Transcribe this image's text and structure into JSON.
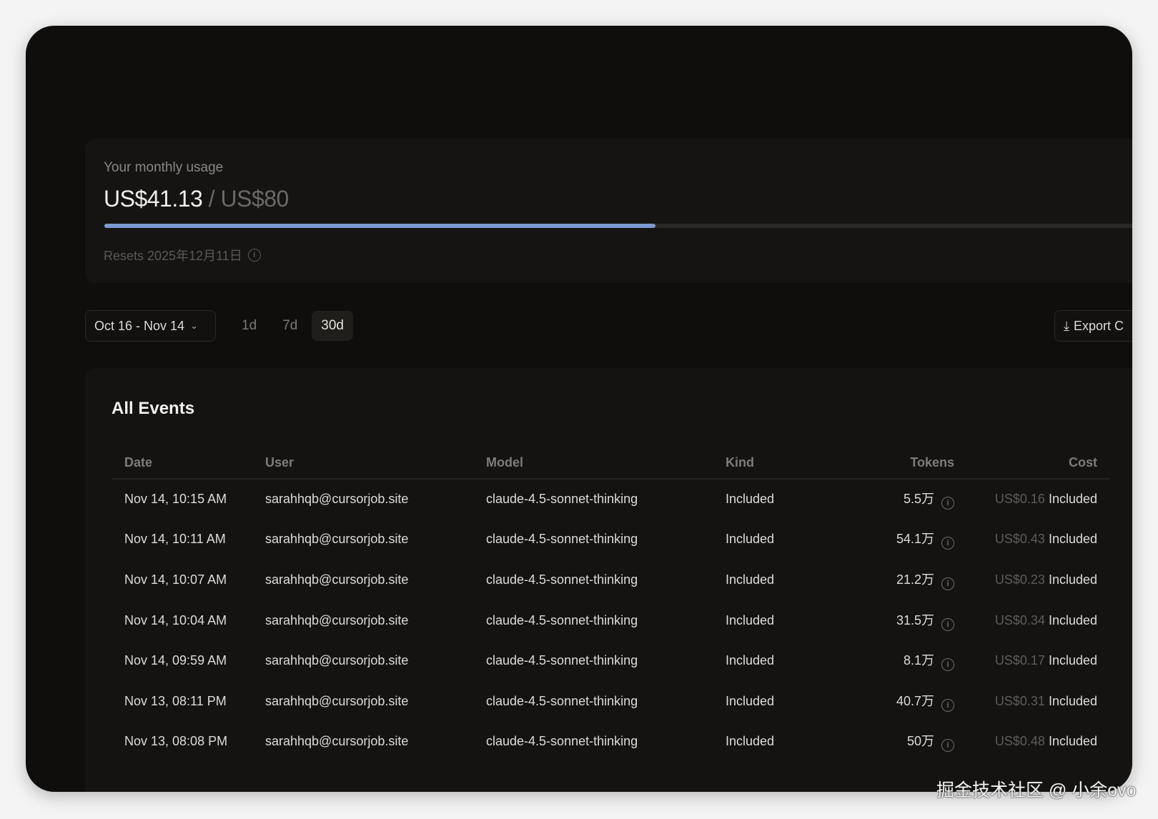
{
  "usage": {
    "label": "Your monthly usage",
    "used": "US$41.13",
    "limit": "/ US$80",
    "progress_percent": 51.4,
    "resets": "Resets 2025年12月11日",
    "bar_color": "#7b9bcf"
  },
  "filters": {
    "date_range": "Oct 16 - Nov 14",
    "ranges": [
      "1d",
      "7d",
      "30d"
    ],
    "active_range": "30d",
    "export_label": "Export C"
  },
  "events": {
    "title": "All Events",
    "columns": [
      "Date",
      "User",
      "Model",
      "Kind",
      "Tokens",
      "Cost"
    ],
    "rows": [
      {
        "date": "Nov 14, 10:15 AM",
        "user": "sarahhqb@cursorjob.site",
        "model": "claude-4.5-sonnet-thinking",
        "kind": "Included",
        "tokens": "5.5万",
        "cost": "US$0.16",
        "cost_status": "Included"
      },
      {
        "date": "Nov 14, 10:11 AM",
        "user": "sarahhqb@cursorjob.site",
        "model": "claude-4.5-sonnet-thinking",
        "kind": "Included",
        "tokens": "54.1万",
        "cost": "US$0.43",
        "cost_status": "Included"
      },
      {
        "date": "Nov 14, 10:07 AM",
        "user": "sarahhqb@cursorjob.site",
        "model": "claude-4.5-sonnet-thinking",
        "kind": "Included",
        "tokens": "21.2万",
        "cost": "US$0.23",
        "cost_status": "Included"
      },
      {
        "date": "Nov 14, 10:04 AM",
        "user": "sarahhqb@cursorjob.site",
        "model": "claude-4.5-sonnet-thinking",
        "kind": "Included",
        "tokens": "31.5万",
        "cost": "US$0.34",
        "cost_status": "Included"
      },
      {
        "date": "Nov 14, 09:59 AM",
        "user": "sarahhqb@cursorjob.site",
        "model": "claude-4.5-sonnet-thinking",
        "kind": "Included",
        "tokens": "8.1万",
        "cost": "US$0.17",
        "cost_status": "Included"
      },
      {
        "date": "Nov 13, 08:11 PM",
        "user": "sarahhqb@cursorjob.site",
        "model": "claude-4.5-sonnet-thinking",
        "kind": "Included",
        "tokens": "40.7万",
        "cost": "US$0.31",
        "cost_status": "Included"
      },
      {
        "date": "Nov 13, 08:08 PM",
        "user": "sarahhqb@cursorjob.site",
        "model": "claude-4.5-sonnet-thinking",
        "kind": "Included",
        "tokens": "50万",
        "cost": "US$0.48",
        "cost_status": "Included"
      }
    ]
  },
  "watermark": "掘金技术社区 @ 小余ovo"
}
